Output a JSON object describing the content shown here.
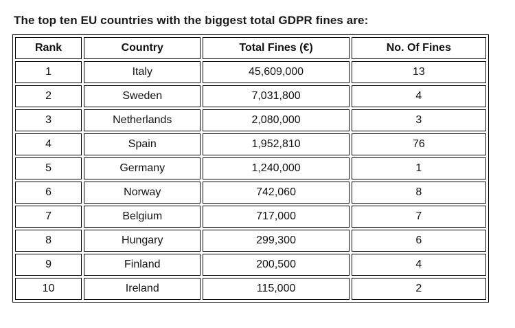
{
  "page": {
    "title": "The top ten EU countries with the biggest total GDPR fines are:"
  },
  "table": {
    "headers": {
      "rank": "Rank",
      "country": "Country",
      "total": "Total Fines (€)",
      "count": "No. Of Fines"
    },
    "rows": [
      {
        "rank": "1",
        "country": "Italy",
        "total": "45,609,000",
        "count": "13"
      },
      {
        "rank": "2",
        "country": "Sweden",
        "total": "7,031,800",
        "count": "4"
      },
      {
        "rank": "3",
        "country": "Netherlands",
        "total": "2,080,000",
        "count": "3"
      },
      {
        "rank": "4",
        "country": "Spain",
        "total": "1,952,810",
        "count": "76"
      },
      {
        "rank": "5",
        "country": "Germany",
        "total": "1,240,000",
        "count": "1"
      },
      {
        "rank": "6",
        "country": "Norway",
        "total": "742,060",
        "count": "8"
      },
      {
        "rank": "7",
        "country": "Belgium",
        "total": "717,000",
        "count": "7"
      },
      {
        "rank": "8",
        "country": "Hungary",
        "total": "299,300",
        "count": "6"
      },
      {
        "rank": "9",
        "country": "Finland",
        "total": "200,500",
        "count": "4"
      },
      {
        "rank": "10",
        "country": "Ireland",
        "total": "115,000",
        "count": "2"
      }
    ]
  }
}
